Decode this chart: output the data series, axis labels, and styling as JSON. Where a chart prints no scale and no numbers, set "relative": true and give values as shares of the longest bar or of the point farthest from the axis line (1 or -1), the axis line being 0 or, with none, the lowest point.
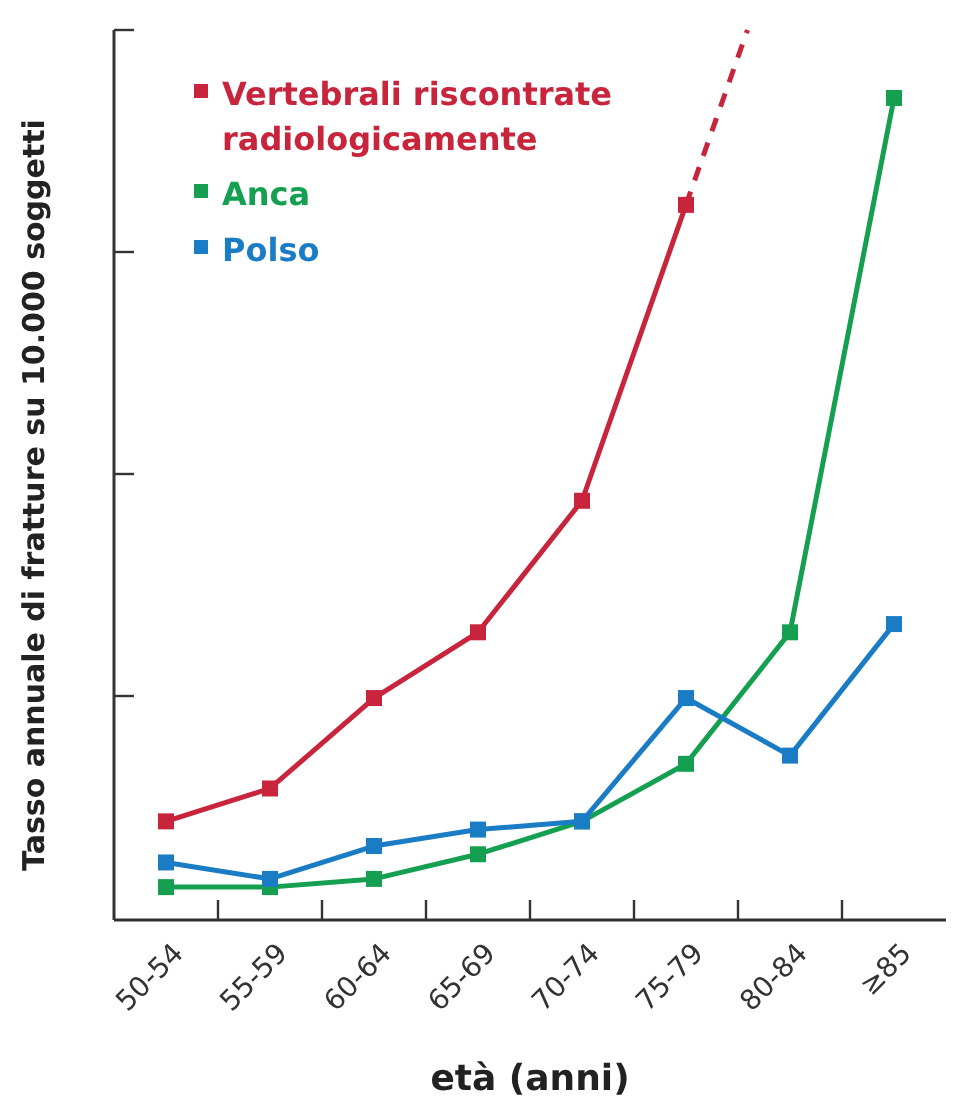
{
  "chart_data": {
    "type": "line",
    "xlabel": "età (anni)",
    "ylabel": "Tasso annuale di fratture su 10.000 soggetti",
    "categories": [
      "50-54",
      "55-59",
      "60-64",
      "65-69",
      "70-74",
      "75-79",
      "80-84",
      "≥85"
    ],
    "relative": true,
    "tick_labels": "x",
    "legend": "top left",
    "marker": "square",
    "line_style": "solid",
    "series": [
      {
        "name": "Vertebrali riscontrate radiologicamente",
        "color": "#c8243c",
        "values": [
          0.12,
          0.16,
          0.27,
          0.35,
          0.51,
          0.87,
          null,
          null
        ]
      },
      {
        "name": "Anca",
        "color": "#14a050",
        "values": [
          0.04,
          0.04,
          0.05,
          0.08,
          0.12,
          0.19,
          0.35,
          1
        ]
      },
      {
        "name": "Polso",
        "color": "#1a7cc4",
        "values": [
          0.07,
          0.05,
          0.09,
          0.11,
          0.12,
          0.27,
          0.2,
          0.36
        ]
      }
    ]
  }
}
